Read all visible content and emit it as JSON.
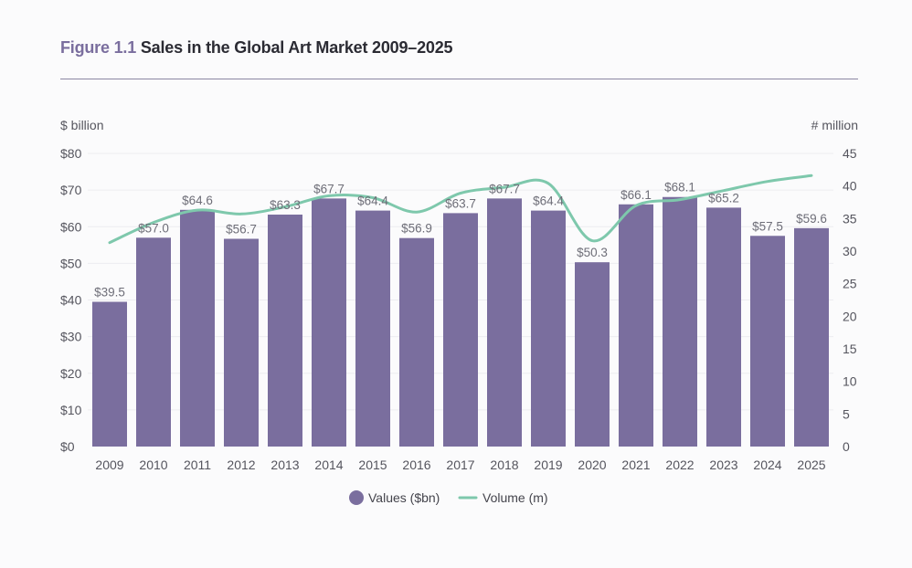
{
  "header": {
    "figure_label": "Figure 1.1",
    "title": "Sales in the Global Art Market 2009–2025"
  },
  "chart_data": {
    "type": "bar",
    "categories": [
      "2009",
      "2010",
      "2011",
      "2012",
      "2013",
      "2014",
      "2015",
      "2016",
      "2017",
      "2018",
      "2019",
      "2020",
      "2021",
      "2022",
      "2023",
      "2024",
      "2025"
    ],
    "series": [
      {
        "name": "Values ($bn)",
        "type": "bar",
        "axis": "left",
        "color": "#7a6e9e",
        "values": [
          39.5,
          57.0,
          64.6,
          56.7,
          63.3,
          67.7,
          64.4,
          56.9,
          63.7,
          67.7,
          64.4,
          50.3,
          66.1,
          68.1,
          65.2,
          57.5,
          59.6
        ],
        "labels": [
          "$39.5",
          "$57.0",
          "$64.6",
          "$56.7",
          "$63.3",
          "$67.7",
          "$64.4",
          "$56.9",
          "$63.7",
          "$67.7",
          "$64.4",
          "$50.3",
          "$66.1",
          "$68.1",
          "$65.2",
          "$57.5",
          "$59.6"
        ]
      },
      {
        "name": "Volume (m)",
        "type": "line",
        "axis": "right",
        "color": "#7ec8ac",
        "values": [
          31.3,
          34.4,
          36.3,
          35.7,
          36.8,
          38.5,
          38.2,
          36.0,
          38.9,
          39.8,
          40.4,
          31.6,
          37.0,
          37.9,
          39.3,
          40.7,
          41.6
        ]
      }
    ],
    "y_left": {
      "label": "$ billion",
      "range": [
        0,
        80
      ],
      "ticks": [
        0,
        10,
        20,
        30,
        40,
        50,
        60,
        70,
        80
      ],
      "tick_labels": [
        "$0",
        "$10",
        "$20",
        "$30",
        "$40",
        "$50",
        "$60",
        "$70",
        "$80"
      ]
    },
    "y_right": {
      "label": "# million",
      "range": [
        0,
        45
      ],
      "ticks": [
        0,
        5,
        10,
        15,
        20,
        25,
        30,
        35,
        40,
        45
      ],
      "tick_labels": [
        "0",
        "5",
        "10",
        "15",
        "20",
        "25",
        "30",
        "35",
        "40",
        "45"
      ]
    },
    "grid": true,
    "legend_position": "bottom-center",
    "legend": [
      "Values ($bn)",
      "Volume (m)"
    ]
  }
}
